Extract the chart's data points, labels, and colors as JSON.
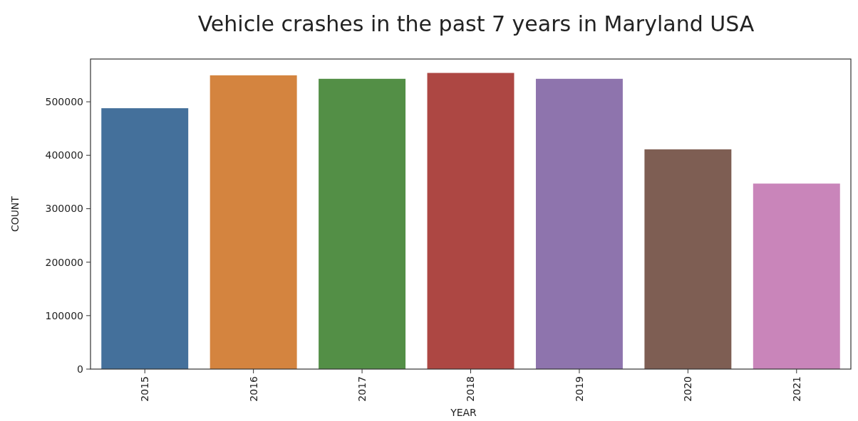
{
  "chart_data": {
    "type": "bar",
    "title": "Vehicle crashes in the past 7 years in Maryland USA",
    "xlabel": "YEAR",
    "ylabel": "COUNT",
    "categories": [
      "2015",
      "2016",
      "2017",
      "2018",
      "2019",
      "2020",
      "2021"
    ],
    "values": [
      488000,
      549500,
      543000,
      554000,
      543000,
      411000,
      347000
    ],
    "colors": [
      "#44709b",
      "#d4843f",
      "#538f46",
      "#ad4743",
      "#8e74ad",
      "#7e5e53",
      "#c985ba"
    ],
    "ylim": [
      0,
      580000
    ],
    "yticks": [
      0,
      100000,
      200000,
      300000,
      400000,
      500000
    ],
    "grid": false
  }
}
